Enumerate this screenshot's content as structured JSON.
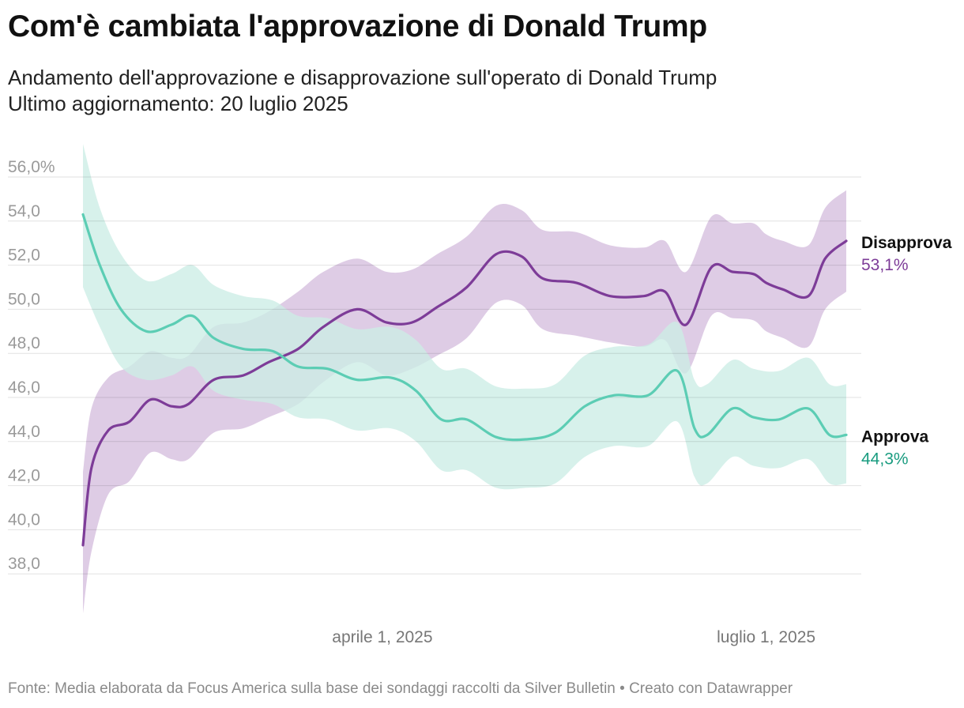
{
  "title": "Com'è cambiata l'approvazione di Donald Trump",
  "subtitle_lines": [
    "Andamento dell'approvazione e disapprovazione sull'operato di Donald Trump",
    "Ultimo aggiornamento: 20 luglio 2025"
  ],
  "footer": "Fonte: Media elaborata da Focus America sulla base dei sondaggi raccolti da Silver Bulletin • Creato con Datawrapper",
  "colors": {
    "disapprove_line": "#7d3c98",
    "disapprove_band": "#d8c3e0",
    "approve_line": "#5ccdb4",
    "approve_band": "#cdeee6",
    "approve_label": "#1a9c80",
    "grid": "#e2e2e2"
  },
  "chart_data": {
    "type": "area",
    "x_unit": "date",
    "xlim": [
      "2025-01-20",
      "2025-07-20"
    ],
    "ylim": [
      36.5,
      57
    ],
    "y_ticks": [
      {
        "value": 56,
        "label": "56,0%"
      },
      {
        "value": 54,
        "label": "54,0"
      },
      {
        "value": 52,
        "label": "52,0"
      },
      {
        "value": 50,
        "label": "50,0"
      },
      {
        "value": 48,
        "label": "48,0"
      },
      {
        "value": 46,
        "label": "46,0"
      },
      {
        "value": 44,
        "label": "44,0"
      },
      {
        "value": 42,
        "label": "42,0"
      },
      {
        "value": 40,
        "label": "40,0"
      },
      {
        "value": 38,
        "label": "38,0"
      }
    ],
    "x_ticks": [
      {
        "date": "2025-04-01",
        "label": "aprile 1, 2025"
      },
      {
        "date": "2025-07-01",
        "label": "luglio 1, 2025"
      }
    ],
    "grid": true,
    "series": [
      {
        "name": "Disapprova",
        "end_label": "53,1%",
        "points": [
          [
            "2025-01-20",
            39.3,
            36.2,
            42.6
          ],
          [
            "2025-01-22",
            42.8,
            39.0,
            45.5
          ],
          [
            "2025-01-26",
            44.5,
            41.6,
            46.9
          ],
          [
            "2025-01-31",
            44.9,
            42.2,
            47.4
          ],
          [
            "2025-02-05",
            45.9,
            43.5,
            48.1
          ],
          [
            "2025-02-10",
            45.6,
            43.2,
            47.8
          ],
          [
            "2025-02-14",
            45.7,
            43.2,
            47.9
          ],
          [
            "2025-02-20",
            46.8,
            44.4,
            49.2
          ],
          [
            "2025-02-27",
            47.0,
            44.6,
            49.4
          ],
          [
            "2025-03-05",
            47.6,
            45.1,
            49.9
          ],
          [
            "2025-03-12",
            48.2,
            45.7,
            50.8
          ],
          [
            "2025-03-18",
            49.2,
            46.7,
            51.7
          ],
          [
            "2025-03-26",
            50.0,
            47.6,
            52.3
          ],
          [
            "2025-04-02",
            49.4,
            47.0,
            51.7
          ],
          [
            "2025-04-08",
            49.4,
            47.3,
            51.8
          ],
          [
            "2025-04-14",
            50.1,
            47.9,
            52.5
          ],
          [
            "2025-04-21",
            51.0,
            48.7,
            53.3
          ],
          [
            "2025-04-28",
            52.5,
            50.3,
            54.7
          ],
          [
            "2025-05-04",
            52.4,
            50.2,
            54.5
          ],
          [
            "2025-05-09",
            51.4,
            49.1,
            53.6
          ],
          [
            "2025-05-17",
            51.2,
            48.8,
            53.5
          ],
          [
            "2025-05-25",
            50.6,
            48.5,
            52.9
          ],
          [
            "2025-06-02",
            50.6,
            48.3,
            52.8
          ],
          [
            "2025-06-07",
            50.8,
            48.6,
            53.1
          ],
          [
            "2025-06-12",
            49.3,
            47.1,
            51.7
          ],
          [
            "2025-06-18",
            51.9,
            49.7,
            54.2
          ],
          [
            "2025-06-23",
            51.7,
            49.6,
            53.9
          ],
          [
            "2025-06-28",
            51.6,
            49.5,
            53.9
          ],
          [
            "2025-07-01",
            51.2,
            49.0,
            53.4
          ],
          [
            "2025-07-05",
            50.9,
            48.7,
            53.1
          ],
          [
            "2025-07-11",
            50.6,
            48.3,
            52.9
          ],
          [
            "2025-07-15",
            52.3,
            50.0,
            54.6
          ],
          [
            "2025-07-20",
            53.1,
            50.8,
            55.4
          ]
        ]
      },
      {
        "name": "Approva",
        "end_label": "44,3%",
        "points": [
          [
            "2025-01-20",
            54.3,
            51.0,
            57.5
          ],
          [
            "2025-01-24",
            52.0,
            49.2,
            54.6
          ],
          [
            "2025-01-29",
            50.0,
            47.4,
            52.5
          ],
          [
            "2025-02-04",
            49.0,
            46.8,
            51.3
          ],
          [
            "2025-02-10",
            49.3,
            47.0,
            51.6
          ],
          [
            "2025-02-15",
            49.7,
            47.4,
            52.0
          ],
          [
            "2025-02-20",
            48.7,
            46.3,
            51.1
          ],
          [
            "2025-02-27",
            48.2,
            45.9,
            50.6
          ],
          [
            "2025-03-06",
            48.1,
            45.7,
            50.4
          ],
          [
            "2025-03-12",
            47.4,
            45.1,
            49.7
          ],
          [
            "2025-03-19",
            47.3,
            45.0,
            49.6
          ],
          [
            "2025-03-26",
            46.8,
            44.5,
            49.1
          ],
          [
            "2025-04-03",
            46.9,
            44.6,
            49.2
          ],
          [
            "2025-04-09",
            46.3,
            44.0,
            48.6
          ],
          [
            "2025-04-15",
            45.0,
            42.7,
            47.3
          ],
          [
            "2025-04-21",
            45.0,
            42.7,
            47.3
          ],
          [
            "2025-04-28",
            44.2,
            41.9,
            46.5
          ],
          [
            "2025-05-05",
            44.1,
            41.9,
            46.4
          ],
          [
            "2025-05-12",
            44.4,
            42.1,
            46.6
          ],
          [
            "2025-05-19",
            45.6,
            43.3,
            47.9
          ],
          [
            "2025-05-26",
            46.1,
            43.8,
            48.3
          ],
          [
            "2025-06-03",
            46.1,
            43.8,
            48.4
          ],
          [
            "2025-06-10",
            47.2,
            44.9,
            49.4
          ],
          [
            "2025-06-14",
            44.6,
            42.4,
            46.8
          ],
          [
            "2025-06-17",
            44.3,
            42.1,
            46.6
          ],
          [
            "2025-06-23",
            45.5,
            43.3,
            47.7
          ],
          [
            "2025-06-28",
            45.1,
            42.9,
            47.3
          ],
          [
            "2025-07-04",
            45.0,
            42.8,
            47.2
          ],
          [
            "2025-07-11",
            45.5,
            43.2,
            47.8
          ],
          [
            "2025-07-16",
            44.3,
            42.1,
            46.6
          ],
          [
            "2025-07-20",
            44.3,
            42.1,
            46.6
          ]
        ]
      }
    ]
  }
}
